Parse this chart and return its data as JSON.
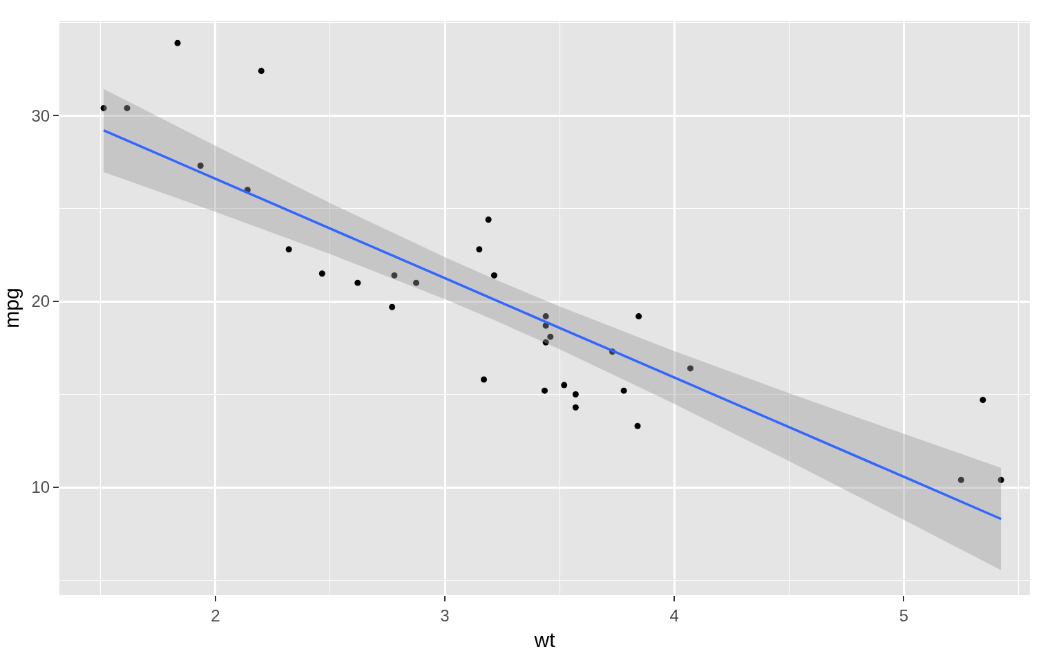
{
  "chart_data": {
    "type": "scatter",
    "xlabel": "wt",
    "ylabel": "mpg",
    "xlim": [
      1.32,
      5.55
    ],
    "xticks": [
      {
        "value": 1.5,
        "label": null
      },
      2,
      {
        "value": 2.5,
        "label": null
      },
      3,
      {
        "value": 3.5,
        "label": null
      },
      4,
      {
        "value": 4.5,
        "label": null
      },
      5,
      {
        "value": 5.5,
        "label": null
      }
    ],
    "ylim": [
      4.2,
      35.1
    ],
    "yticks": [
      {
        "value": 5,
        "label": null
      },
      10,
      {
        "value": 15,
        "label": null
      },
      20,
      {
        "value": 25,
        "label": null
      },
      30,
      {
        "value": 35,
        "label": null
      }
    ],
    "grid": true,
    "series": [
      {
        "marker": "circle",
        "color": "#000000",
        "x": [
          2.62,
          2.875,
          2.32,
          3.215,
          3.44,
          3.46,
          3.57,
          3.19,
          3.15,
          3.44,
          3.44,
          4.07,
          3.73,
          3.78,
          5.25,
          5.424,
          5.345,
          2.2,
          1.615,
          1.835,
          2.465,
          3.52,
          3.435,
          3.84,
          3.845,
          1.935,
          2.14,
          1.513,
          3.17,
          2.77,
          3.57,
          2.78
        ],
        "values": [
          21.0,
          21.0,
          22.8,
          21.4,
          18.7,
          18.1,
          14.3,
          24.4,
          22.8,
          19.2,
          17.8,
          16.4,
          17.3,
          15.2,
          10.4,
          10.4,
          14.7,
          32.4,
          30.4,
          33.9,
          21.5,
          15.5,
          15.2,
          13.3,
          19.2,
          27.3,
          26.0,
          30.4,
          15.8,
          19.7,
          15.0,
          21.4
        ]
      },
      {
        "type": "line",
        "marker": "none",
        "line_style": "solid",
        "color": "#3366ff",
        "x": [
          1.513,
          2,
          2.5,
          3,
          3.217,
          3.5,
          4,
          4.5,
          5,
          5.424
        ],
        "values": [
          29.2,
          26.6,
          23.92,
          21.25,
          20.09,
          18.58,
          15.91,
          13.24,
          10.57,
          8.3
        ],
        "lower": [
          26.96,
          24.82,
          22.55,
          20.12,
          18.99,
          17.43,
          14.49,
          11.41,
          8.25,
          5.55
        ],
        "upper": [
          31.43,
          28.37,
          25.29,
          22.38,
          21.19,
          19.73,
          17.33,
          15.07,
          12.88,
          11.05
        ]
      }
    ]
  }
}
